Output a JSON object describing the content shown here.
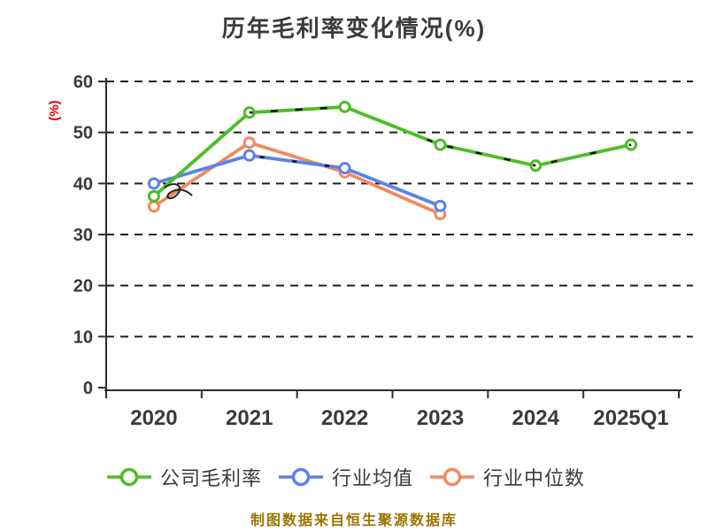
{
  "chart_data": {
    "type": "line",
    "title": "历年毛利率变化情况(%)",
    "title_color": "#3b3b3b",
    "ylabel": "(%)",
    "xlabel": "",
    "categories": [
      "2020",
      "2021",
      "2022",
      "2023",
      "2024",
      "2025Q1"
    ],
    "series": [
      {
        "name": "公司毛利率",
        "color": "#4cbd27",
        "values": [
          37.5,
          53.9,
          55.0,
          47.6,
          43.5,
          47.6
        ]
      },
      {
        "name": "行业均值",
        "color": "#5a82e6",
        "values": [
          40.0,
          45.5,
          43.0,
          35.6
        ]
      },
      {
        "name": "行业中位数",
        "color": "#f08a60",
        "values": [
          35.5,
          48.0,
          42.2,
          34.0
        ]
      }
    ],
    "ylim": [
      0,
      60
    ],
    "ytick_interval": 10,
    "grid": "horizontal-dashed",
    "gridline_color": "#1f1f1f",
    "legend_position": "bottom",
    "marker": "hollow-circle"
  },
  "axis": {
    "line_color": "#2e2e2e",
    "tick_label_color": "#3a3a3a",
    "ylabel_color": "#e60000"
  },
  "footer": {
    "note": "制图数据来自恒生聚源数据库",
    "color": "#9c7300"
  }
}
